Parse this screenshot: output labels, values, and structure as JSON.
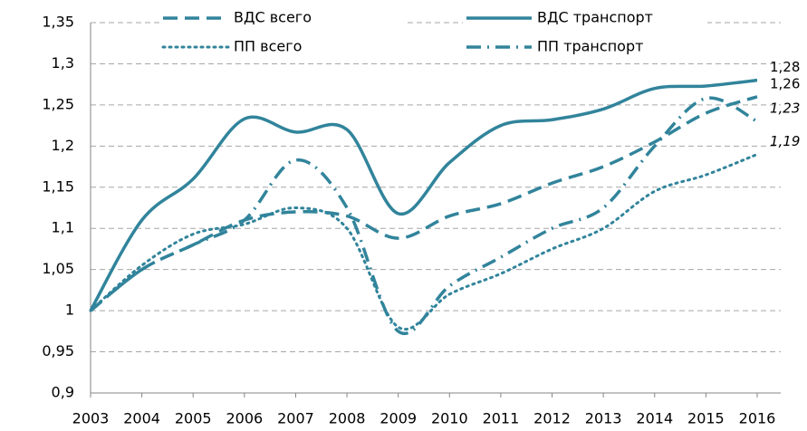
{
  "chart_data": {
    "type": "line",
    "categories": [
      "2003",
      "2004",
      "2005",
      "2006",
      "2007",
      "2008",
      "2009",
      "2010",
      "2011",
      "2012",
      "2013",
      "2014",
      "2015",
      "2016"
    ],
    "series": [
      {
        "name": "ВДС всего",
        "color": "#31849b",
        "dash": "dashed",
        "values": [
          1.0,
          1.05,
          1.08,
          1.11,
          1.12,
          1.115,
          1.088,
          1.115,
          1.13,
          1.155,
          1.175,
          1.205,
          1.24,
          1.26
        ],
        "value_labels": [
          null,
          null,
          null,
          null,
          null,
          null,
          null,
          null,
          null,
          null,
          null,
          null,
          null,
          "1,26"
        ]
      },
      {
        "name": "ВДС транспорт",
        "color": "#31849b",
        "dash": "solid",
        "values": [
          1.0,
          1.11,
          1.16,
          1.233,
          1.217,
          1.22,
          1.118,
          1.18,
          1.225,
          1.232,
          1.245,
          1.27,
          1.273,
          1.28
        ],
        "value_labels": [
          null,
          null,
          null,
          null,
          null,
          null,
          null,
          null,
          null,
          null,
          null,
          null,
          null,
          "1,28"
        ]
      },
      {
        "name": "ПП всего",
        "color": "#31849b",
        "dash": "dotted",
        "values": [
          1.0,
          1.055,
          1.093,
          1.105,
          1.125,
          1.1,
          0.98,
          1.02,
          1.045,
          1.075,
          1.1,
          1.145,
          1.165,
          1.19
        ],
        "value_labels": [
          null,
          null,
          null,
          null,
          null,
          null,
          null,
          null,
          null,
          null,
          null,
          null,
          null,
          "1,19"
        ]
      },
      {
        "name": "ПП транспорт",
        "color": "#31849b",
        "dash": "dashdot",
        "values": [
          1.0,
          1.05,
          1.08,
          1.11,
          1.183,
          1.125,
          0.975,
          1.03,
          1.065,
          1.1,
          1.125,
          1.2,
          1.258,
          1.23
        ],
        "value_labels": [
          null,
          null,
          null,
          null,
          null,
          null,
          null,
          null,
          null,
          null,
          null,
          null,
          null,
          "1,23"
        ]
      }
    ],
    "ylim": [
      0.9,
      1.35
    ],
    "yticks": [
      {
        "value": 0.9,
        "label": "0,9"
      },
      {
        "value": 0.95,
        "label": "0,95"
      },
      1,
      {
        "value": 1.05,
        "label": "1,05"
      },
      {
        "value": 1.1,
        "label": "1,1"
      },
      {
        "value": 1.15,
        "label": "1,15"
      },
      {
        "value": 1.2,
        "label": "1,2"
      },
      {
        "value": 1.25,
        "label": "1,25"
      },
      {
        "value": 1.3,
        "label": "1,3"
      },
      {
        "value": 1.35,
        "label": "1,35"
      }
    ],
    "grid": true
  }
}
